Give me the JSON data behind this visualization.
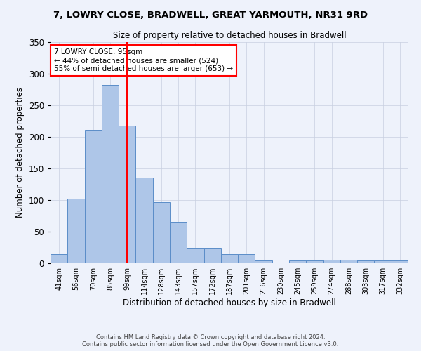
{
  "title1": "7, LOWRY CLOSE, BRADWELL, GREAT YARMOUTH, NR31 9RD",
  "title2": "Size of property relative to detached houses in Bradwell",
  "xlabel": "Distribution of detached houses by size in Bradwell",
  "ylabel": "Number of detached properties",
  "categories": [
    "41sqm",
    "56sqm",
    "70sqm",
    "85sqm",
    "99sqm",
    "114sqm",
    "128sqm",
    "143sqm",
    "157sqm",
    "172sqm",
    "187sqm",
    "201sqm",
    "216sqm",
    "230sqm",
    "245sqm",
    "259sqm",
    "274sqm",
    "288sqm",
    "303sqm",
    "317sqm",
    "332sqm"
  ],
  "values": [
    15,
    102,
    211,
    282,
    218,
    136,
    97,
    66,
    25,
    25,
    15,
    15,
    4,
    0,
    5,
    5,
    6,
    6,
    5,
    4,
    4
  ],
  "bar_color": "#aec6e8",
  "bar_edge_color": "#5b8dc8",
  "background_color": "#eef2fb",
  "vline_x": 4.0,
  "vline_color": "red",
  "annotation_text": "7 LOWRY CLOSE: 95sqm\n← 44% of detached houses are smaller (524)\n55% of semi-detached houses are larger (653) →",
  "annotation_box_color": "white",
  "annotation_box_edge": "red",
  "ylim": [
    0,
    350
  ],
  "yticks": [
    0,
    50,
    100,
    150,
    200,
    250,
    300,
    350
  ],
  "footer1": "Contains HM Land Registry data © Crown copyright and database right 2024.",
  "footer2": "Contains public sector information licensed under the Open Government Licence v3.0."
}
